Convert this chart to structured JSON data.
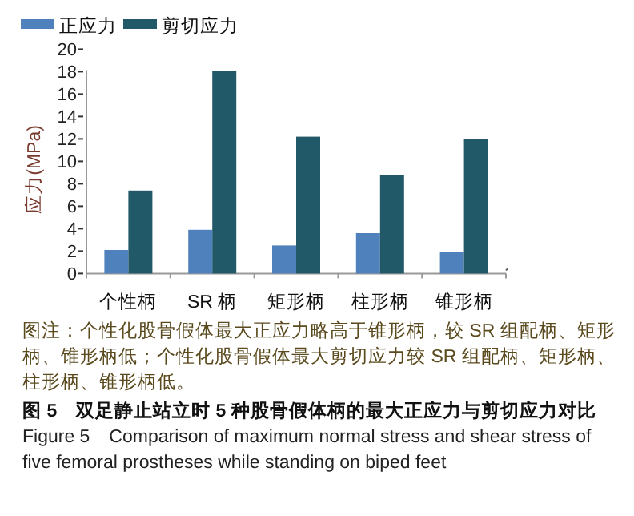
{
  "chart_data": {
    "type": "bar",
    "title": "图 5　双足静止站立时 5 种股骨假体柄的最大正应力与剪切应力对比",
    "subtitle": "Figure 5　Comparison of maximum normal stress and shear stress of five femoral prostheses while standing on biped feet",
    "ylabel": "应力(MPa)",
    "categories": [
      "个性柄",
      "SR 柄",
      "矩形柄",
      "柱形柄",
      "锥形柄"
    ],
    "series": [
      {
        "name": "正应力",
        "color": "#4f81bd",
        "values": [
          2.1,
          3.9,
          2.5,
          3.6,
          1.9
        ]
      },
      {
        "name": "剪切应力",
        "color": "#215968",
        "values": [
          7.4,
          18.1,
          12.2,
          8.8,
          12.0
        ]
      }
    ],
    "ylim": [
      0,
      20
    ],
    "yticks": [
      0,
      2,
      4,
      6,
      8,
      10,
      12,
      14,
      16,
      18,
      20
    ],
    "legend": "top left",
    "annotations": [
      "图注：个性化股骨假体最大正应力略高于锥形柄，较 SR 组配柄、矩形柄、锥形柄低；个性化股骨假体最大剪切应力较 SR 组配柄、矩形柄、柱形柄、锥形柄低。"
    ]
  }
}
